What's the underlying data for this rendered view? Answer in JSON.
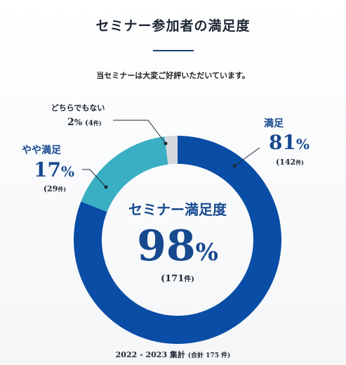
{
  "title": "セミナー参加者の満足度",
  "subtitle": "当セミナーは大変ご好評いただいています。",
  "center": {
    "label": "セミナー満足度",
    "percent_number": "98",
    "percent_sign": "%",
    "count": "(171",
    "count_unit": "件)"
  },
  "labels": {
    "satisfied": {
      "name": "満足",
      "pct": "81",
      "sign": "%",
      "count": "(142",
      "unit": "件)"
    },
    "somewhat": {
      "name": "やや満足",
      "pct": "17",
      "sign": "%",
      "count": "(29",
      "unit": "件)"
    },
    "neutral": {
      "name": "どちらでもない",
      "pct": "2",
      "sign": "%",
      "count": "(4",
      "unit": "件)"
    }
  },
  "footer": {
    "main": "2022 - 2023 集計",
    "total": "(合計 175 件)"
  },
  "colors": {
    "satisfied": "#0a4da6",
    "somewhat": "#3aafc3",
    "neutral": "#d6d9dc",
    "text_dark": "#1d2733",
    "text_blue": "#17498f",
    "rule": "#1d3f73"
  },
  "chart_data": {
    "type": "pie",
    "title": "セミナー参加者の満足度",
    "categories": [
      "満足",
      "やや満足",
      "どちらでもない"
    ],
    "values": [
      81,
      17,
      2
    ],
    "counts": [
      142,
      29,
      4
    ],
    "total": 175,
    "unit": "%"
  }
}
